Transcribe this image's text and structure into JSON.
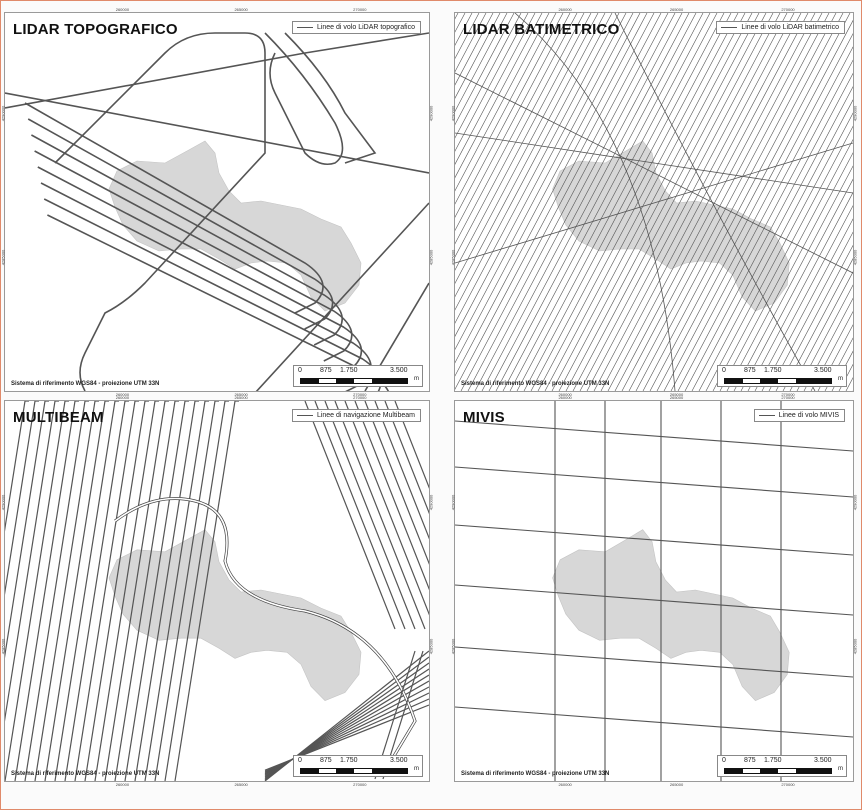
{
  "panels": {
    "topo": {
      "title": "LIDAR TOPOGRAFICO",
      "legend": "Linee di volo LiDAR topografico",
      "srs": "Sistema di riferimento WGS84 - proiezione UTM 33N",
      "scale": [
        "0",
        "875",
        "1.750",
        "3.500",
        "m"
      ],
      "ticks": {
        "x1": "260000",
        "x2": "265000",
        "x3": "270000",
        "y1": "4290000",
        "y2": "4285000"
      }
    },
    "bati": {
      "title": "LIDAR BATIMETRICO",
      "legend": "Linee di volo LiDAR batimetrico",
      "srs": "Sistema di riferimento WGS84 - proiezione UTM 33N",
      "scale": [
        "0",
        "875",
        "1.750",
        "3.500",
        "m"
      ],
      "ticks": {
        "x1": "260000",
        "x2": "265000",
        "x3": "270000",
        "y1": "4290000",
        "y2": "4285000"
      }
    },
    "multi": {
      "title": "MULTIBEAM",
      "legend": "Linee di navigazione Multibeam",
      "srs": "Sistema di riferimento WGS84 - proiezione UTM 33N",
      "scale": [
        "0",
        "875",
        "1.750",
        "3.500",
        "m"
      ],
      "ticks": {
        "x1": "260000",
        "x2": "265000",
        "x3": "270000",
        "y1": "4290000",
        "y2": "4285000"
      }
    },
    "mivis": {
      "title": "MIVIS",
      "legend": "Linee di volo MIVIS",
      "srs": "Sistema di riferimento WGS84 - proiezione UTM 33N",
      "scale": [
        "0",
        "875",
        "1.750",
        "3.500",
        "m"
      ],
      "ticks": {
        "x1": "260000",
        "x2": "265000",
        "x3": "270000",
        "y1": "4290000",
        "y2": "4285000"
      }
    }
  },
  "colors": {
    "island": "#d7d7d7",
    "line": "#555555",
    "border": "#e08a6a"
  }
}
